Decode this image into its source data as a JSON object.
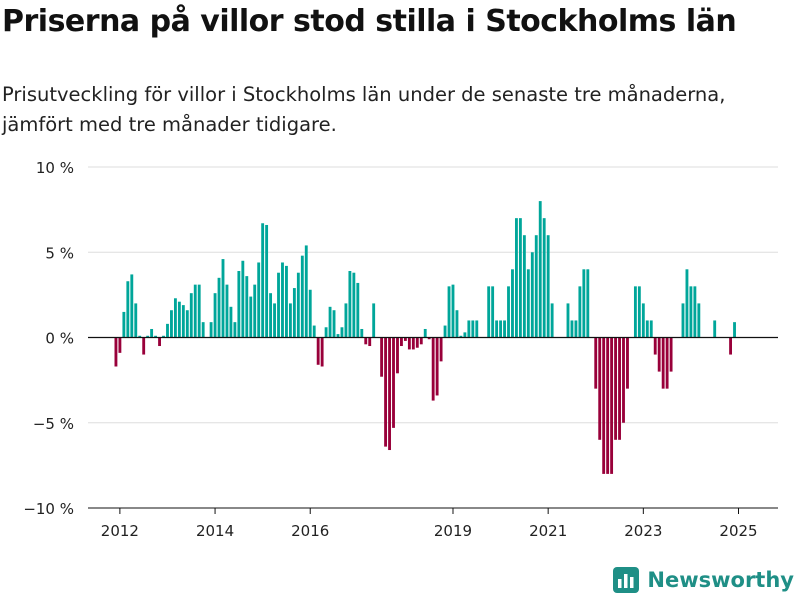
{
  "title": "Priserna på villor stod stilla i Stockholms län",
  "subtitle": "Prisutveckling för villor i Stockholms län under de senaste tre månaderna, jämfört med tre månader tidigare.",
  "brand": "Newsworthy",
  "colors": {
    "positive": "#00a69a",
    "negative": "#99003a",
    "grid": "#dddddd",
    "axis": "#111111",
    "brand": "#1f8f86"
  },
  "chart_data": {
    "type": "bar",
    "ylim": [
      -10,
      10
    ],
    "y_ticks": [
      10,
      5,
      0,
      -5,
      -10
    ],
    "y_tick_labels": [
      "10 %",
      "5 %",
      "0 %",
      "−5 %",
      "−10 %"
    ],
    "x_ticks": [
      {
        "label": "2012",
        "x": 2012.0
      },
      {
        "label": "2014",
        "x": 2014.0
      },
      {
        "label": "2016",
        "x": 2016.0
      },
      {
        "label": "2019",
        "x": 2019.0
      },
      {
        "label": "2021",
        "x": 2021.0
      },
      {
        "label": "2023",
        "x": 2023.0
      },
      {
        "label": "2025",
        "x": 2025.0
      }
    ],
    "x_range": [
      2011.33,
      2025.83
    ],
    "start": 2011.917,
    "step": 0.08333,
    "grid": true,
    "annotation": {
      "text": "0 %",
      "index": 158
    },
    "values": [
      -1.7,
      -0.9,
      1.5,
      3.3,
      3.7,
      2.0,
      0.1,
      -1.0,
      0.1,
      0.5,
      0.1,
      -0.5,
      0.1,
      0.8,
      1.6,
      2.3,
      2.1,
      1.9,
      1.6,
      2.6,
      3.1,
      3.1,
      0.9,
      0.0,
      0.9,
      2.6,
      3.5,
      4.6,
      3.1,
      1.8,
      0.9,
      3.9,
      4.5,
      3.6,
      2.4,
      3.1,
      4.4,
      6.7,
      6.6,
      2.6,
      2.0,
      3.8,
      4.4,
      4.2,
      2.0,
      2.9,
      3.8,
      4.8,
      5.4,
      2.8,
      0.7,
      -1.6,
      -1.7,
      0.6,
      1.8,
      1.6,
      0.2,
      0.6,
      2.0,
      3.9,
      3.8,
      3.2,
      0.5,
      -0.4,
      -0.5,
      2.0,
      0.0,
      -2.3,
      -6.4,
      -6.6,
      -5.3,
      -2.1,
      -0.5,
      -0.2,
      -0.7,
      -0.7,
      -0.6,
      -0.4,
      0.5,
      -0.1,
      -3.7,
      -3.4,
      -1.4,
      0.7,
      3.0,
      3.1,
      1.6,
      0.1,
      0.3,
      1.0,
      1.0,
      1.0,
      0.0,
      0.0,
      3.0,
      3.0,
      1.0,
      1.0,
      1.0,
      3.0,
      4.0,
      7.0,
      7.0,
      6.0,
      4.0,
      5.0,
      6.0,
      8.0,
      7.0,
      6.0,
      2.0,
      0.0,
      0.0,
      0.0,
      2.0,
      1.0,
      1.0,
      3.0,
      4.0,
      4.0,
      0.0,
      -3.0,
      -6.0,
      -8.0,
      -8.0,
      -8.0,
      -6.0,
      -6.0,
      -5.0,
      -3.0,
      0.0,
      3.0,
      3.0,
      2.0,
      1.0,
      1.0,
      -1.0,
      -2.0,
      -3.0,
      -3.0,
      -2.0,
      0.0,
      0.0,
      2.0,
      4.0,
      3.0,
      3.0,
      2.0,
      0.0,
      0.0,
      0.0,
      1.0,
      0.0,
      0.0,
      0.0,
      -1.0,
      0.9
    ]
  }
}
